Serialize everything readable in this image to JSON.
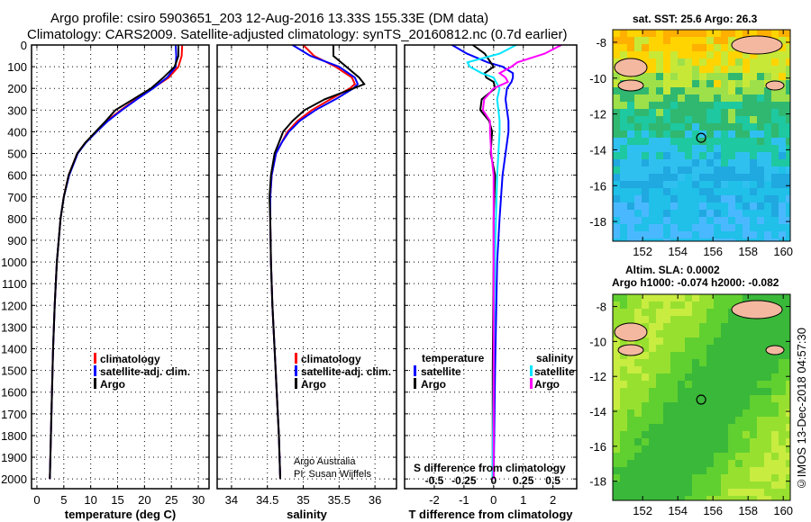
{
  "title_line1": "Argo profile: csiro 5903651_203 12-Aug-2016 13.33S 155.33E (DM data)",
  "title_line2": "Climatology: CARS2009. Satellite-adjusted climatology: synTS_20160812.nc (0.7d earlier)",
  "credit_line1": "Argo Australia",
  "credit_line2": "PI: Susan Wijffels",
  "footer_vertical": "©IMOS 13-Dec-2018 04:57:30",
  "colors": {
    "climatology": "#ff0000",
    "satellite": "#0000ff",
    "argo": "#000000",
    "s_satellite": "#00e5ff",
    "s_argo": "#ff00ff"
  },
  "chart_data": [
    {
      "type": "line",
      "xlabel": "temperature (deg C)",
      "ylabel": "depth",
      "xlim": [
        -1,
        32
      ],
      "ylim": [
        2045,
        0
      ],
      "xticks": [
        0,
        5,
        10,
        15,
        20,
        25,
        30
      ],
      "yticks": [
        0,
        100,
        200,
        300,
        400,
        500,
        600,
        700,
        800,
        900,
        1000,
        1100,
        1200,
        1300,
        1400,
        1500,
        1600,
        1700,
        1800,
        1900,
        2000
      ],
      "legend": [
        "climatology",
        "satellite-adj. clim.",
        "Argo"
      ],
      "depth": [
        0,
        50,
        100,
        150,
        200,
        250,
        300,
        350,
        400,
        450,
        500,
        600,
        700,
        800,
        1000,
        1200,
        1400,
        1600,
        1800,
        2000
      ],
      "series": [
        {
          "name": "climatology",
          "color": "#ff0000",
          "values": [
            27.0,
            26.9,
            26.3,
            24.5,
            21.5,
            18.4,
            15.6,
            13.0,
            11.0,
            9.0,
            7.5,
            5.9,
            5.0,
            4.4,
            3.7,
            3.3,
            3.0,
            2.8,
            2.6,
            2.4
          ]
        },
        {
          "name": "satellite-adj. clim.",
          "color": "#0000ff",
          "values": [
            25.8,
            25.9,
            25.8,
            24.2,
            21.6,
            18.6,
            15.8,
            13.2,
            11.1,
            9.1,
            7.6,
            6.0,
            5.0,
            4.4,
            3.7,
            3.3,
            3.0,
            2.8,
            2.6,
            2.4
          ]
        },
        {
          "name": "Argo",
          "color": "#000000",
          "values": [
            26.3,
            26.3,
            25.6,
            23.5,
            21.2,
            17.9,
            14.6,
            12.8,
            10.9,
            9.0,
            7.5,
            5.9,
            5.0,
            4.4,
            3.7,
            3.3,
            3.0,
            2.8,
            2.6,
            2.4
          ]
        }
      ]
    },
    {
      "type": "line",
      "xlabel": "salinity",
      "xlim": [
        33.8,
        36.3
      ],
      "ylim": [
        2045,
        0
      ],
      "xticks": [
        34,
        34.5,
        35,
        35.5,
        36
      ],
      "legend": [
        "climatology",
        "satellite-adj. clim.",
        "Argo"
      ],
      "depth": [
        0,
        50,
        100,
        150,
        180,
        200,
        250,
        300,
        350,
        400,
        450,
        500,
        600,
        700,
        800,
        1000,
        1200,
        1400,
        1600,
        1800,
        2000
      ],
      "series": [
        {
          "name": "climatology",
          "color": "#ff0000",
          "values": [
            35.0,
            35.15,
            35.45,
            35.68,
            35.72,
            35.65,
            35.38,
            35.12,
            34.92,
            34.78,
            34.7,
            34.62,
            34.56,
            34.54,
            34.54,
            34.55,
            34.57,
            34.6,
            34.63,
            34.66,
            34.68
          ]
        },
        {
          "name": "satellite-adj. clim.",
          "color": "#0000ff",
          "values": [
            34.85,
            35.1,
            35.5,
            35.72,
            35.76,
            35.7,
            35.45,
            35.17,
            34.95,
            34.8,
            34.7,
            34.62,
            34.56,
            34.54,
            34.54,
            34.55,
            34.57,
            34.6,
            34.63,
            34.66,
            34.68
          ]
        },
        {
          "name": "Argo",
          "color": "#000000",
          "values": [
            35.42,
            35.42,
            35.6,
            35.78,
            35.85,
            35.7,
            35.3,
            35.02,
            34.85,
            34.72,
            34.66,
            34.6,
            34.55,
            34.53,
            34.54,
            34.55,
            34.57,
            34.6,
            34.63,
            34.66,
            34.68
          ]
        }
      ]
    },
    {
      "type": "line",
      "xlabel": "T difference from climatology",
      "xlabel2": "S difference from climatology",
      "xlim": [
        -3.0,
        2.8
      ],
      "ylim": [
        2045,
        0
      ],
      "xticks": [
        -2,
        -1,
        0,
        1,
        2
      ],
      "xticks2": [
        -0.5,
        -0.25,
        0,
        0.25,
        0.5
      ],
      "xtick2_labels": [
        "-0.5",
        "-0.25",
        "0",
        "0.25",
        "0.5"
      ],
      "legend_temperature_title": "temperature",
      "legend_salinity_title": "salinity",
      "legend_items": [
        "satellite",
        "Argo"
      ],
      "depth": [
        0,
        40,
        80,
        100,
        130,
        150,
        170,
        200,
        250,
        300,
        350,
        400,
        500,
        600,
        800,
        1000,
        1500,
        2000
      ],
      "series": [
        {
          "name": "T satellite",
          "color": "#0000ff",
          "units": "T",
          "values": [
            -1.4,
            -0.9,
            -0.2,
            0.3,
            0.65,
            0.65,
            0.6,
            0.45,
            0.4,
            0.45,
            0.5,
            0.5,
            0.4,
            0.3,
            0.2,
            0.12,
            0.05,
            0.0
          ]
        },
        {
          "name": "T Argo",
          "color": "#000000",
          "units": "T",
          "values": [
            -0.7,
            -0.3,
            -0.1,
            0.0,
            -0.3,
            -0.25,
            0.0,
            0.05,
            -0.4,
            -0.45,
            -0.15,
            -0.05,
            -0.1,
            0.05,
            0.0,
            0.0,
            -0.03,
            -0.03
          ]
        },
        {
          "name": "S satellite",
          "color": "#00e5ff",
          "units": "S",
          "values": [
            0.19,
            0.05,
            -0.22,
            -0.2,
            -0.1,
            0.0,
            0.02,
            0.05,
            0.03,
            0.04,
            0.05,
            0.05,
            0.04,
            0.03,
            0.02,
            0.01,
            0.0,
            -0.01
          ]
        },
        {
          "name": "S Argo",
          "color": "#ff00ff",
          "units": "S",
          "values": [
            0.57,
            0.43,
            0.2,
            0.15,
            0.05,
            0.1,
            0.12,
            0.0,
            -0.08,
            -0.09,
            -0.03,
            -0.03,
            -0.02,
            0.0,
            0.0,
            0.0,
            0.0,
            0.0
          ]
        }
      ]
    },
    {
      "type": "heatmap",
      "title": "sat. SST: 25.6 Argo: 26.3",
      "xticks": [
        152,
        154,
        156,
        158,
        160
      ],
      "yticks": [
        -8,
        -10,
        -12,
        -14,
        -16,
        -18
      ],
      "xlim": [
        150.3,
        160.4
      ],
      "ylim": [
        -19.1,
        -7.3
      ],
      "marker": [
        155.33,
        -13.33
      ]
    },
    {
      "type": "heatmap",
      "title": "Altim. SLA: 0.0002",
      "subtitle": "Argo h1000: -0.074 h2000: -0.082",
      "xticks": [
        152,
        154,
        156,
        158,
        160
      ],
      "yticks": [
        -8,
        -10,
        -12,
        -14,
        -16,
        -18
      ],
      "xlim": [
        150.3,
        160.4
      ],
      "ylim": [
        -19.1,
        -7.3
      ],
      "marker": [
        155.33,
        -13.33
      ]
    }
  ]
}
